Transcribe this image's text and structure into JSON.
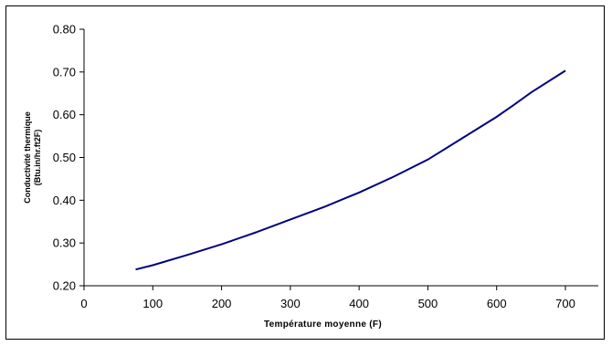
{
  "chart_data": {
    "type": "line",
    "title": "",
    "xlabel": "Température moyenne (F)",
    "ylabel_lines": [
      "Conductivité thermique",
      "(Btu.in/hr.ft2F)"
    ],
    "xlim": [
      0,
      700
    ],
    "ylim": [
      0.2,
      0.8
    ],
    "x_ticks": [
      0,
      100,
      200,
      300,
      400,
      500,
      600,
      700
    ],
    "x_tick_labels": [
      "0",
      "100",
      "200",
      "300",
      "400",
      "500",
      "600",
      "700"
    ],
    "y_ticks": [
      0.2,
      0.3,
      0.4,
      0.5,
      0.6,
      0.7,
      0.8
    ],
    "y_tick_labels": [
      "0.20",
      "0.30",
      "0.40",
      "0.50",
      "0.60",
      "0.70",
      "0.80"
    ],
    "grid": false,
    "legend": "none",
    "series": [
      {
        "color": "#000080",
        "x": [
          75,
          100,
          150,
          200,
          250,
          300,
          350,
          400,
          450,
          500,
          550,
          600,
          625,
          650,
          700
        ],
        "y": [
          0.238,
          0.248,
          0.272,
          0.297,
          0.325,
          0.355,
          0.385,
          0.418,
          0.455,
          0.495,
          0.545,
          0.595,
          0.623,
          0.652,
          0.703
        ]
      }
    ]
  }
}
